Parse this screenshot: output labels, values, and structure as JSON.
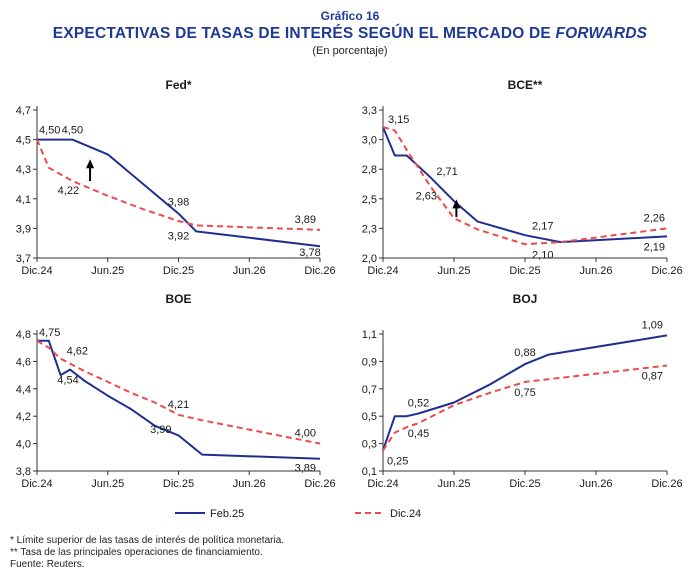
{
  "header": {
    "subheading": "Gráfico 16",
    "title_main": "EXPECTATIVAS DE TASAS DE INTERÉS SEGÚN EL MERCADO DE ",
    "title_italic": "FORWARDS",
    "units": "(En porcentaje)"
  },
  "legend": {
    "feb": "Feb.25",
    "dic": "Dic.24"
  },
  "colors": {
    "feb": "#1f2f8f",
    "dic": "#ee4b4b",
    "title": "#1f3a93"
  },
  "footnotes": [
    "* Límite superior de las tasas de interés de política monetaria.",
    "** Tasa de las principales operaciones de financiamiento.",
    "Fuente: Reuters."
  ],
  "chart_data": [
    {
      "type": "line",
      "title": "Fed*",
      "xticks": [
        "Dic.24",
        "Jun.25",
        "Dic.25",
        "Jun.26",
        "Dic.26"
      ],
      "xlim": [
        0,
        24
      ],
      "ylim": [
        3.7,
        4.7
      ],
      "yticks": [
        "3,7",
        "3,9",
        "4,1",
        "4,3",
        "4,5",
        "4,7"
      ],
      "series": [
        {
          "name": "Feb.25",
          "style": "solid",
          "x": [
            0,
            1,
            3,
            6,
            9,
            12,
            13.5,
            24
          ],
          "y": [
            4.5,
            4.5,
            4.5,
            4.4,
            4.2,
            4.0,
            3.88,
            3.78
          ]
        },
        {
          "name": "Dic.24",
          "style": "dashed",
          "x": [
            0,
            1,
            3,
            6,
            9,
            12,
            13.5,
            24
          ],
          "y": [
            4.5,
            4.31,
            4.22,
            4.12,
            4.03,
            3.95,
            3.92,
            3.89
          ]
        }
      ],
      "labels": [
        "4,50",
        "4,50",
        "4,22",
        "3,98",
        "3,92",
        "3,89",
        "3,78"
      ]
    },
    {
      "type": "line",
      "title": "BCE**",
      "xticks": [
        "Dic.24",
        "Jun.25",
        "Dic.25",
        "Jun.26",
        "Dic.26"
      ],
      "xlim": [
        0,
        24
      ],
      "ylim": [
        2.0,
        3.3
      ],
      "yticks": [
        "2,0",
        "2,3",
        "2,5",
        "2,8",
        "3,0",
        "3,3"
      ],
      "series": [
        {
          "name": "Feb.25",
          "style": "solid",
          "x": [
            0,
            1,
            2,
            4,
            6,
            8,
            12,
            15,
            24
          ],
          "y": [
            3.15,
            2.9,
            2.9,
            2.71,
            2.5,
            2.32,
            2.2,
            2.14,
            2.19
          ]
        },
        {
          "name": "Dic.24",
          "style": "dashed",
          "x": [
            0,
            1,
            2,
            4,
            6,
            8,
            12,
            15,
            24
          ],
          "y": [
            3.15,
            3.12,
            2.95,
            2.63,
            2.35,
            2.25,
            2.12,
            2.14,
            2.26
          ]
        }
      ],
      "labels": [
        "3,15",
        "2,71",
        "2,63",
        "2,17",
        "2,10",
        "2,26",
        "2,19"
      ]
    },
    {
      "type": "line",
      "title": "BOE",
      "xticks": [
        "Dic.24",
        "Jun.25",
        "Dic.25",
        "Jun.26",
        "Dic.26"
      ],
      "xlim": [
        0,
        24
      ],
      "ylim": [
        3.8,
        4.8
      ],
      "yticks": [
        "3,8",
        "4,0",
        "4,2",
        "4,4",
        "4,6",
        "4,8"
      ],
      "series": [
        {
          "name": "Feb.25",
          "style": "solid",
          "x": [
            0,
            1,
            2,
            2.8,
            4,
            6,
            8,
            10,
            12,
            14,
            24
          ],
          "y": [
            4.75,
            4.75,
            4.5,
            4.54,
            4.46,
            4.35,
            4.25,
            4.13,
            4.06,
            3.92,
            3.89
          ]
        },
        {
          "name": "Dic.24",
          "style": "dashed",
          "x": [
            0,
            1,
            2,
            4,
            6,
            8,
            10,
            12,
            14,
            24
          ],
          "y": [
            4.75,
            4.7,
            4.62,
            4.53,
            4.45,
            4.37,
            4.3,
            4.21,
            4.17,
            4.0
          ]
        }
      ],
      "labels": [
        "4,75",
        "4,62",
        "4,54",
        "4,21",
        "3,99",
        "4,00",
        "3,89"
      ]
    },
    {
      "type": "line",
      "title": "BOJ",
      "xticks": [
        "Dic.24",
        "Jun.25",
        "Dic.25",
        "Jun.26",
        "Dic.26"
      ],
      "xlim": [
        0,
        24
      ],
      "ylim": [
        0.1,
        1.1
      ],
      "yticks": [
        "0,1",
        "0,3",
        "0,5",
        "0,7",
        "0,9",
        "1,1"
      ],
      "series": [
        {
          "name": "Feb.25",
          "style": "solid",
          "x": [
            0,
            1,
            2,
            3,
            6,
            9,
            12,
            14,
            24
          ],
          "y": [
            0.25,
            0.5,
            0.5,
            0.52,
            0.6,
            0.73,
            0.88,
            0.95,
            1.09
          ]
        },
        {
          "name": "Dic.24",
          "style": "dashed",
          "x": [
            0,
            1,
            2,
            3,
            6,
            9,
            12,
            14,
            24
          ],
          "y": [
            0.25,
            0.38,
            0.42,
            0.45,
            0.58,
            0.67,
            0.75,
            0.77,
            0.87
          ]
        }
      ],
      "labels": [
        "0,25",
        "0,52",
        "0,45",
        "0,88",
        "0,75",
        "1,09",
        "0,87"
      ]
    }
  ]
}
